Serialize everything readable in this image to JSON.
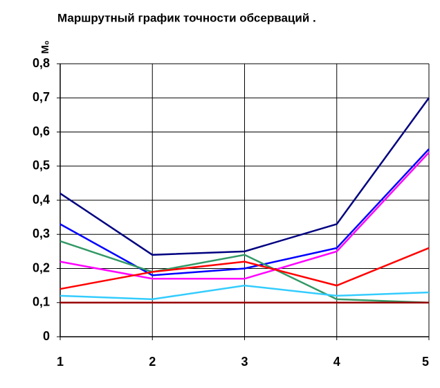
{
  "chart_data": {
    "type": "line",
    "title": "Маршрутный  график точности обсерваций .",
    "y_label": "M₀",
    "x": [
      1,
      2,
      3,
      4,
      5
    ],
    "xlim": [
      1,
      5
    ],
    "xticks": [
      1,
      2,
      3,
      4,
      5
    ],
    "ylim": [
      0,
      0.8
    ],
    "yticks": [
      0,
      {
        "value": 0.1,
        "label": "0,1"
      },
      {
        "value": 0.2,
        "label": "0,2"
      },
      {
        "value": 0.3,
        "label": "0,3"
      },
      {
        "value": 0.4,
        "label": "0,4"
      },
      {
        "value": 0.5,
        "label": "0,5"
      },
      {
        "value": 0.6,
        "label": "0,6"
      },
      {
        "value": 0.7,
        "label": "0,7"
      },
      {
        "value": 0.8,
        "label": "0,8"
      }
    ],
    "grid": true,
    "series": [
      {
        "color": "#000080",
        "values": [
          0.42,
          0.24,
          0.25,
          0.33,
          0.7
        ]
      },
      {
        "color": "#0000ff",
        "values": [
          0.33,
          0.18,
          0.2,
          0.26,
          0.55
        ]
      },
      {
        "color": "#339966",
        "values": [
          0.28,
          0.19,
          0.24,
          0.11,
          0.1
        ]
      },
      {
        "color": "#ff00ff",
        "values": [
          0.22,
          0.17,
          0.17,
          0.25,
          0.54
        ]
      },
      {
        "color": "#ff0000",
        "values": [
          0.14,
          0.19,
          0.22,
          0.15,
          0.26
        ]
      },
      {
        "color": "#33ccff",
        "values": [
          0.12,
          0.11,
          0.15,
          0.12,
          0.13
        ]
      },
      {
        "color": "#990000",
        "values": [
          0.1,
          0.1,
          0.1,
          0.1,
          0.1
        ]
      }
    ]
  }
}
